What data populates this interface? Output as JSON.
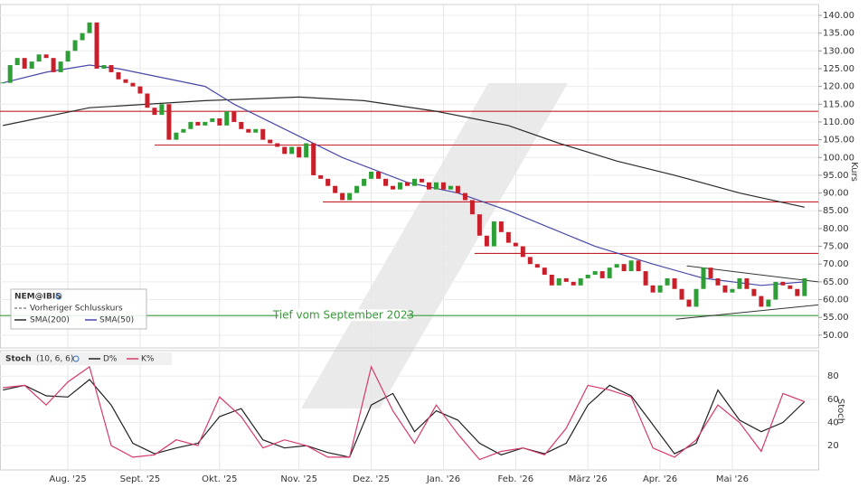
{
  "chart_data": [
    {
      "type": "candlestick",
      "title": "NEM@IBIS",
      "ylabel": "Kurs",
      "up_color": "#2e9e36",
      "down_color": "#c8202a",
      "xlim": [
        -0.4,
        112.9
      ],
      "ylim": [
        46.4,
        143.05
      ],
      "yticks": [
        {
          "value": 50,
          "label": "50.00"
        },
        {
          "value": 55,
          "label": "55.00"
        },
        {
          "value": 60,
          "label": "60.00"
        },
        {
          "value": 65,
          "label": "65.00"
        },
        {
          "value": 70,
          "label": "70.00"
        },
        {
          "value": 75,
          "label": "75.00"
        },
        {
          "value": 80,
          "label": "80.00"
        },
        {
          "value": 85,
          "label": "85.00"
        },
        {
          "value": 90,
          "label": "90.00"
        },
        {
          "value": 95,
          "label": "95.00"
        },
        {
          "value": 100,
          "label": "100.00"
        },
        {
          "value": 105,
          "label": "105.00"
        },
        {
          "value": 110,
          "label": "110.00"
        },
        {
          "value": 115,
          "label": "115.00"
        },
        {
          "value": 120,
          "label": "120.00"
        },
        {
          "value": 125,
          "label": "125.00"
        },
        {
          "value": 130,
          "label": "130.00"
        },
        {
          "value": 135,
          "label": "135.00"
        },
        {
          "value": 140,
          "label": "140.00"
        }
      ],
      "grid": true,
      "values": [
        121,
        126,
        128,
        125,
        127,
        129,
        128,
        124,
        127,
        130,
        133,
        135,
        138,
        125,
        126,
        124,
        122,
        121,
        120,
        118,
        114,
        112,
        115,
        105,
        107,
        108,
        110,
        109,
        110,
        111,
        109,
        113,
        110,
        108,
        107,
        108,
        105,
        104,
        103,
        101,
        103,
        100,
        104,
        95,
        94,
        92,
        90,
        88,
        90,
        92,
        94,
        96,
        94,
        92,
        91,
        93,
        92,
        94,
        93,
        91,
        93,
        91,
        92,
        90,
        88,
        84,
        78,
        75,
        82,
        79,
        76,
        75,
        72,
        70,
        69,
        67,
        64,
        66,
        65,
        64,
        66,
        67,
        68,
        66,
        69,
        70,
        68,
        71,
        68,
        64,
        62,
        64,
        66,
        63,
        60,
        58,
        63,
        69,
        66,
        64,
        62,
        63,
        66,
        63,
        61,
        58,
        60,
        65,
        64,
        63,
        61,
        66
      ],
      "reference_line": {
        "name": "Vorheriger Schlusskurs"
      },
      "series": [
        {
          "name": "SMA(200)",
          "color": "#2b2b2b",
          "x": [
            0,
            12,
            28,
            41,
            50,
            60,
            70,
            77,
            85,
            93,
            102,
            111
          ],
          "values": [
            109,
            114,
            116,
            117,
            116,
            113,
            109,
            104,
            99,
            95,
            90,
            86
          ]
        },
        {
          "name": "SMA(50)",
          "color": "#4848a8",
          "x": [
            0,
            6,
            12,
            16,
            28,
            32,
            37,
            47,
            56,
            63,
            70,
            76,
            82,
            90,
            97,
            105,
            111
          ],
          "values": [
            121,
            124,
            126,
            125,
            120,
            115,
            110,
            100,
            93,
            90,
            85,
            80,
            75,
            70,
            66,
            64,
            65
          ]
        }
      ],
      "levels": [
        {
          "value": 113,
          "color": "#c8202a"
        },
        {
          "value": 103.5,
          "from": 21,
          "color": "#c8202a"
        },
        {
          "value": 87.5,
          "from": 44.3,
          "color": "#c8202a"
        },
        {
          "value": 73,
          "from": 65.3,
          "color": "#c8202a"
        },
        {
          "value": 55.5,
          "color": "#3a9a3a",
          "label": "Tief vom September 2023"
        }
      ],
      "trendlines": [
        {
          "x": [
            94.7,
            112.9
          ],
          "values": [
            69.5,
            65
          ]
        },
        {
          "x": [
            93.2,
            112.9
          ],
          "values": [
            54.5,
            58.5
          ]
        }
      ]
    },
    {
      "type": "line",
      "title": "Stoch",
      "subtitle": "(10, 6, 6)",
      "ylabel": "Stoch",
      "xlim": [
        -0.4,
        112.9
      ],
      "ylim": [
        -1,
        102
      ],
      "yticks": [
        20,
        40,
        60,
        80
      ],
      "xticks": [
        {
          "value": 9,
          "label": "Aug. '25"
        },
        {
          "value": 19,
          "label": "Sept. '25"
        },
        {
          "value": 30,
          "label": "Okt. '25"
        },
        {
          "value": 41,
          "label": "Nov. '25"
        },
        {
          "value": 51,
          "label": "Dez. '25"
        },
        {
          "value": 61,
          "label": "Jan. '26"
        },
        {
          "value": 71,
          "label": "Feb. '26"
        },
        {
          "value": 81,
          "label": "März '26"
        },
        {
          "value": 91,
          "label": "Apr. '26"
        },
        {
          "value": 101,
          "label": "Mai '26"
        }
      ],
      "x": [
        0,
        3,
        6,
        9,
        12,
        15,
        18,
        21,
        24,
        27,
        30,
        33,
        36,
        39,
        42,
        45,
        48,
        51,
        54,
        57,
        60,
        63,
        66,
        69,
        72,
        75,
        78,
        81,
        84,
        87,
        90,
        93,
        96,
        99,
        102,
        105,
        108,
        111
      ],
      "series": [
        {
          "name": "D%",
          "color": "#222222",
          "values": [
            68,
            72,
            63,
            62,
            77,
            55,
            22,
            13,
            18,
            22,
            45,
            52,
            25,
            18,
            20,
            14,
            10,
            55,
            65,
            32,
            50,
            42,
            22,
            12,
            18,
            13,
            22,
            55,
            72,
            63,
            38,
            13,
            22,
            68,
            42,
            32,
            40,
            58
          ]
        },
        {
          "name": "K%",
          "color": "#d63a6a",
          "values": [
            70,
            72,
            55,
            75,
            88,
            20,
            10,
            12,
            25,
            20,
            62,
            45,
            18,
            25,
            20,
            10,
            10,
            88,
            50,
            22,
            55,
            30,
            8,
            15,
            18,
            12,
            35,
            72,
            68,
            62,
            18,
            10,
            25,
            55,
            40,
            15,
            65,
            58
          ]
        }
      ]
    }
  ]
}
